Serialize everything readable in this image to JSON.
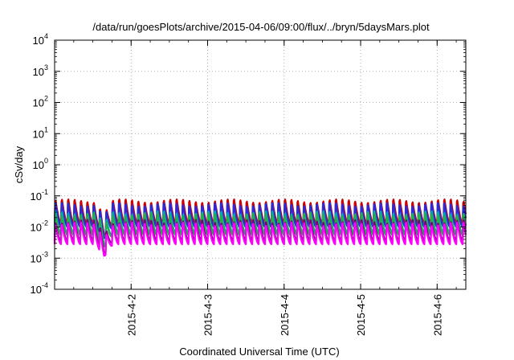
{
  "chart_data": {
    "type": "line",
    "title": "/data/run/goesPlots/archive/2015-04-06/09:00/flux/../bryn/5daysMars.plot",
    "xlabel": "Coordinated Universal Time (UTC)",
    "ylabel": "cSv/day",
    "yscale": "log",
    "ylim": [
      0.0001,
      10000
    ],
    "grid": true,
    "y_tick_values": [
      0.0001,
      0.001,
      0.01,
      0.1,
      1,
      10,
      100,
      1000,
      10000
    ],
    "y_tick_labels": [
      {
        "base": "10",
        "exp": "-4"
      },
      {
        "base": "10",
        "exp": "-3"
      },
      {
        "base": "10",
        "exp": "-2"
      },
      {
        "base": "10",
        "exp": "-1"
      },
      {
        "base": "10",
        "exp": "0"
      },
      {
        "base": "10",
        "exp": "1"
      },
      {
        "base": "10",
        "exp": "2"
      },
      {
        "base": "10",
        "exp": "3"
      },
      {
        "base": "10",
        "exp": "4"
      }
    ],
    "xlim": [
      "2015-04-01T00:00",
      "2015-04-06T09:00"
    ],
    "x_ticks": [
      "2015-4-2",
      "2015-4-3",
      "2015-4-4",
      "2015-4-5",
      "2015-4-6"
    ],
    "x_tick_dates": [
      "2015-04-02T00:00",
      "2015-04-03T00:00",
      "2015-04-04T00:00",
      "2015-04-05T00:00",
      "2015-04-06T00:00"
    ],
    "sawtooth_period_hours": 2,
    "dip": {
      "date": "2015-04-01T15:30",
      "depth": 0.35
    },
    "series": [
      {
        "color": "#cc0000",
        "peak": 0.085,
        "trough": 0.013
      },
      {
        "color": "#2a2ad8",
        "peak": 0.065,
        "trough": 0.01
      },
      {
        "color": "#00aaaa",
        "peak": 0.035,
        "trough": 0.006
      },
      {
        "color": "#20b050",
        "peak": 0.03,
        "trough": 0.0055
      },
      {
        "color": "#800080",
        "peak": 0.018,
        "trough": 0.0035
      },
      {
        "color": "#ff00ff",
        "peak": 0.015,
        "trough": 0.0028
      }
    ]
  }
}
